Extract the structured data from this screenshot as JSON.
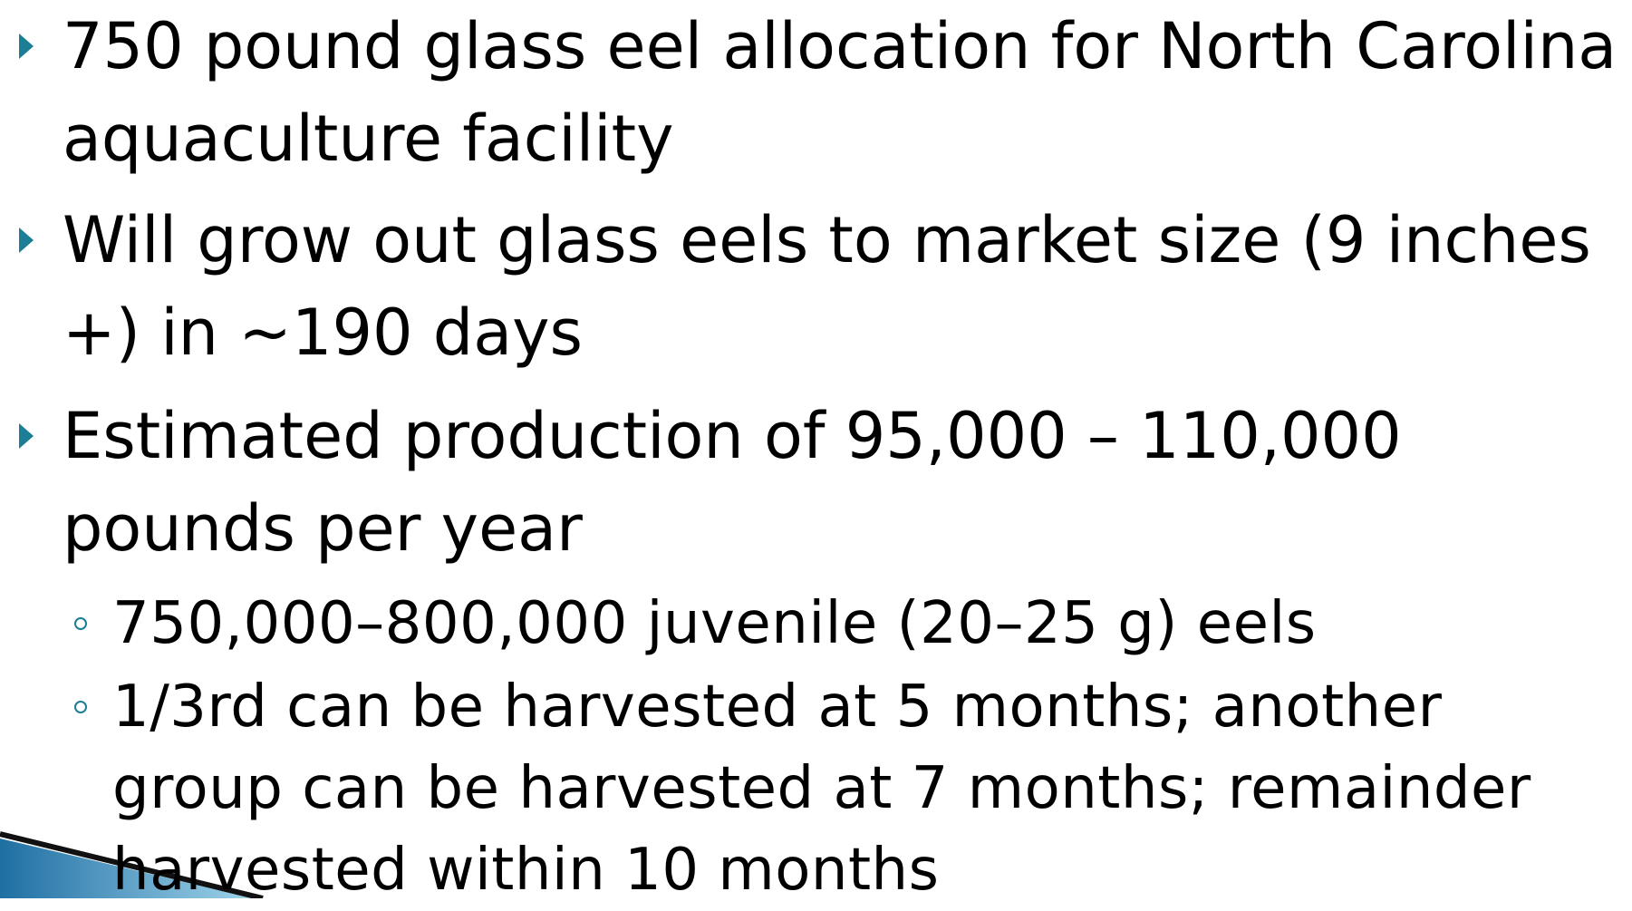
{
  "bullets": [
    {
      "text": "750 pound glass eel allocation for North Carolina aquaculture facility"
    },
    {
      "text": "Will grow out glass eels to market size (9 inches +) in ~190 days"
    },
    {
      "text": "Estimated production of 95,000 – 110,000 pounds per year",
      "subbullets": [
        "750,000–800,000 juvenile (20–25 g) eels",
        "1/3rd can be harvested at 5 months;  another group can be harvested at 7 months; remainder harvested within 10 months"
      ]
    }
  ]
}
